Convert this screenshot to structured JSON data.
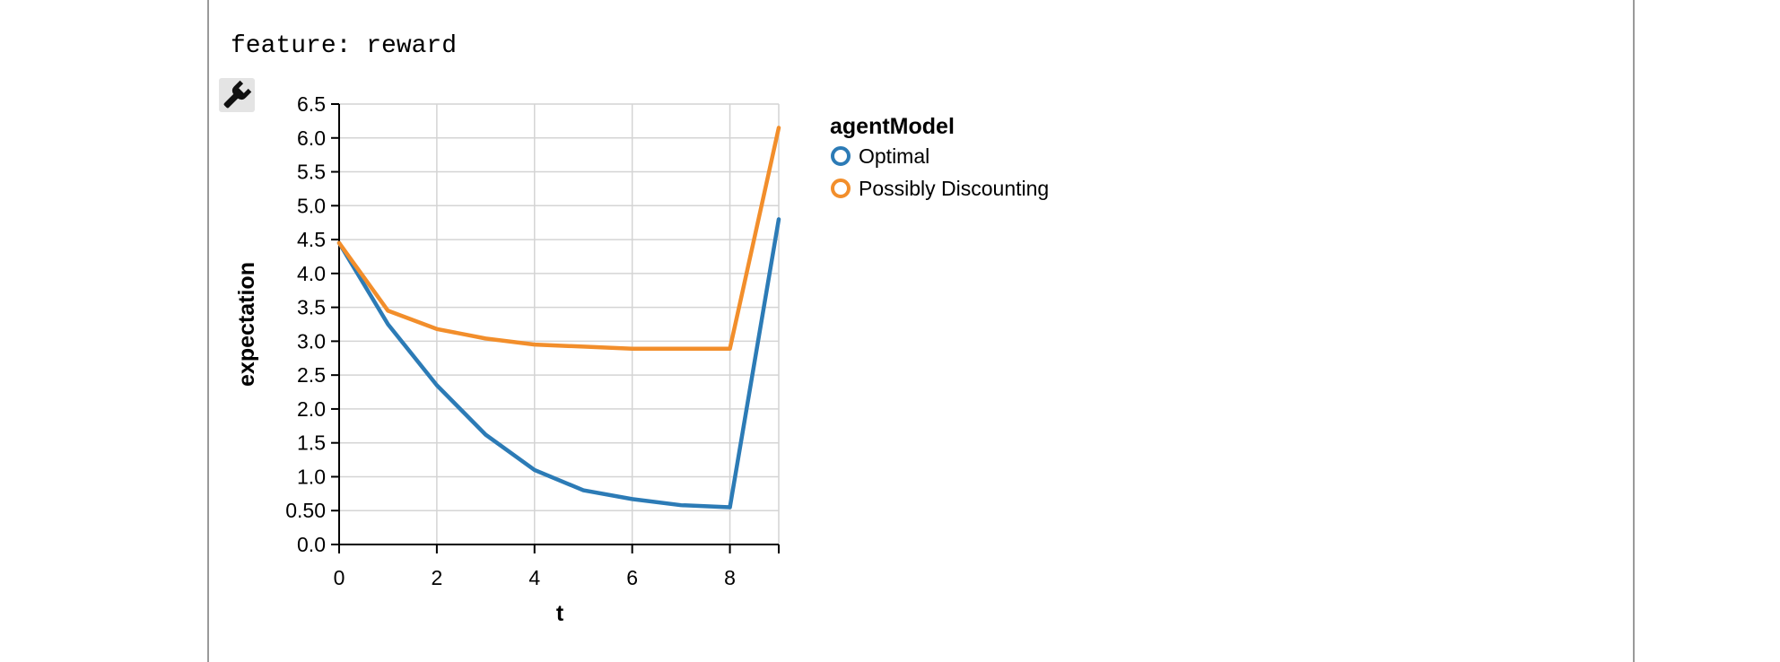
{
  "feature_label": "feature: reward",
  "toolbar": {
    "wrench_icon": "wrench-icon"
  },
  "chart_data": {
    "type": "line",
    "title": "",
    "xlabel": "t",
    "ylabel": "expectation",
    "xlim": [
      0,
      9
    ],
    "ylim": [
      0,
      6.5
    ],
    "x_ticks": [
      "0",
      "2",
      "4",
      "6",
      "8"
    ],
    "y_ticks": [
      "0.0",
      "0.50",
      "1.0",
      "1.5",
      "2.0",
      "2.5",
      "3.0",
      "3.5",
      "4.0",
      "4.5",
      "5.0",
      "5.5",
      "6.0",
      "6.5"
    ],
    "grid": true,
    "legend": {
      "title": "agentModel",
      "placement": "right"
    },
    "x": [
      0,
      1,
      2,
      3,
      4,
      5,
      6,
      7,
      8,
      9
    ],
    "series": [
      {
        "name": "Optimal",
        "color": "#2c7bb6",
        "values": [
          4.45,
          3.25,
          2.35,
          1.62,
          1.1,
          0.8,
          0.67,
          0.58,
          0.55,
          4.8
        ]
      },
      {
        "name": "Possibly Discounting",
        "color": "#f28e2b",
        "values": [
          4.45,
          3.45,
          3.18,
          3.04,
          2.95,
          2.92,
          2.89,
          2.89,
          2.89,
          6.15
        ]
      }
    ]
  }
}
